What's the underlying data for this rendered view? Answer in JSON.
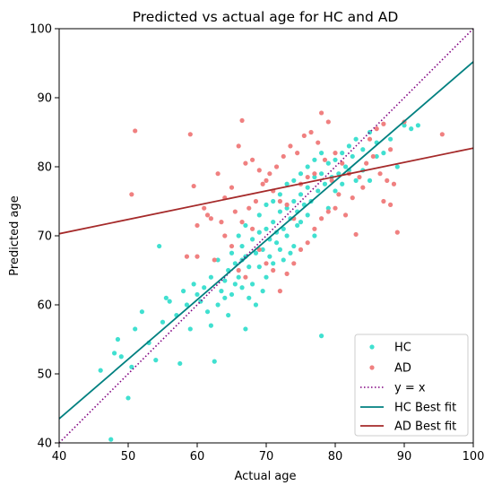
{
  "chart_data": {
    "type": "scatter",
    "title": "Predicted vs actual age for HC and AD",
    "xlabel": "Actual age",
    "ylabel": "Predicted age",
    "xlim": [
      40,
      100
    ],
    "ylim": [
      40,
      100
    ],
    "xticks": [
      40,
      50,
      60,
      70,
      80,
      90,
      100
    ],
    "yticks": [
      40,
      50,
      60,
      70,
      80,
      90,
      100
    ],
    "grid": false,
    "legend_position": "bottom-right",
    "colors": {
      "hc": "#40E0D0",
      "ad": "#F08080",
      "identity": "#800080",
      "hc_fit": "#008080",
      "ad_fit": "#A52A2A"
    },
    "series": [
      {
        "name": "HC",
        "kind": "scatter",
        "points": [
          [
            46.0,
            50.5
          ],
          [
            47.5,
            40.5
          ],
          [
            48.0,
            53.0
          ],
          [
            48.5,
            55.0
          ],
          [
            49.0,
            52.5
          ],
          [
            50.0,
            46.5
          ],
          [
            50.5,
            51.0
          ],
          [
            51.0,
            56.5
          ],
          [
            52.0,
            59.0
          ],
          [
            53.0,
            54.5
          ],
          [
            54.0,
            52.0
          ],
          [
            55.0,
            57.5
          ],
          [
            55.5,
            61.0
          ],
          [
            56.0,
            60.5
          ],
          [
            57.0,
            58.5
          ],
          [
            58.0,
            62.0
          ],
          [
            58.5,
            60.0
          ],
          [
            59.0,
            56.5
          ],
          [
            59.5,
            63.0
          ],
          [
            60.0,
            61.5
          ],
          [
            60.5,
            60.5
          ],
          [
            61.0,
            62.5
          ],
          [
            61.5,
            59.0
          ],
          [
            62.0,
            64.0
          ],
          [
            62.5,
            51.8
          ],
          [
            63.0,
            66.5
          ],
          [
            63.5,
            62.0
          ],
          [
            64.0,
            63.5
          ],
          [
            64.5,
            65.0
          ],
          [
            65.0,
            67.5
          ],
          [
            65.5,
            66.0
          ],
          [
            66.0,
            64.0
          ],
          [
            66.5,
            68.5
          ],
          [
            67.0,
            67.0
          ],
          [
            67.5,
            65.5
          ],
          [
            68.0,
            69.5
          ],
          [
            68.5,
            67.5
          ],
          [
            69.0,
            70.5
          ],
          [
            69.5,
            68.0
          ],
          [
            70.0,
            71.0
          ],
          [
            70.5,
            69.5
          ],
          [
            71.0,
            72.0
          ],
          [
            71.5,
            70.5
          ],
          [
            72.0,
            73.5
          ],
          [
            72.5,
            71.0
          ],
          [
            73.0,
            74.0
          ],
          [
            73.5,
            72.5
          ],
          [
            74.0,
            75.0
          ],
          [
            74.5,
            73.5
          ],
          [
            75.0,
            76.0
          ],
          [
            75.5,
            74.5
          ],
          [
            76.0,
            77.0
          ],
          [
            76.5,
            75.0
          ],
          [
            77.0,
            78.5
          ],
          [
            77.5,
            76.5
          ],
          [
            78.0,
            79.0
          ],
          [
            78.5,
            77.5
          ],
          [
            79.0,
            80.5
          ],
          [
            79.5,
            78.5
          ],
          [
            80.0,
            81.0
          ],
          [
            80.5,
            79.0
          ],
          [
            81.0,
            82.0
          ],
          [
            81.5,
            80.0
          ],
          [
            82.0,
            83.0
          ],
          [
            82.5,
            81.5
          ],
          [
            83.0,
            84.0
          ],
          [
            84.0,
            82.5
          ],
          [
            85.0,
            85.0
          ],
          [
            86.0,
            83.5
          ],
          [
            87.0,
            82.0
          ],
          [
            88.0,
            84.0
          ],
          [
            89.0,
            80.0
          ],
          [
            90.0,
            86.0
          ],
          [
            91.0,
            85.5
          ],
          [
            92.0,
            86.0
          ],
          [
            54.5,
            68.5
          ],
          [
            57.5,
            51.5
          ],
          [
            62.0,
            57.0
          ],
          [
            64.5,
            58.5
          ],
          [
            66.0,
            70.0
          ],
          [
            67.0,
            56.5
          ],
          [
            68.0,
            63.0
          ],
          [
            69.0,
            65.5
          ],
          [
            70.0,
            64.0
          ],
          [
            71.0,
            66.0
          ],
          [
            72.0,
            68.0
          ],
          [
            73.0,
            70.0
          ],
          [
            74.0,
            68.5
          ],
          [
            75.0,
            72.0
          ],
          [
            76.0,
            73.0
          ],
          [
            77.0,
            70.0
          ],
          [
            78.0,
            55.5
          ],
          [
            79.0,
            74.0
          ],
          [
            80.0,
            76.5
          ],
          [
            81.0,
            77.5
          ],
          [
            82.0,
            79.5
          ],
          [
            83.0,
            78.0
          ],
          [
            84.0,
            79.5
          ],
          [
            85.0,
            78.0
          ],
          [
            86.0,
            81.5
          ],
          [
            65.0,
            61.5
          ],
          [
            66.5,
            62.5
          ],
          [
            67.5,
            61.0
          ],
          [
            68.5,
            60.0
          ],
          [
            69.5,
            62.0
          ],
          [
            70.5,
            67.0
          ],
          [
            71.5,
            69.0
          ],
          [
            72.5,
            66.5
          ],
          [
            73.5,
            67.5
          ],
          [
            74.5,
            71.5
          ],
          [
            63.0,
            60.0
          ],
          [
            64.0,
            61.0
          ],
          [
            65.5,
            63.0
          ],
          [
            66.5,
            66.5
          ],
          [
            67.0,
            71.5
          ],
          [
            69.0,
            73.0
          ],
          [
            70.0,
            74.5
          ],
          [
            71.0,
            75.0
          ],
          [
            72.0,
            76.0
          ],
          [
            73.0,
            77.5
          ],
          [
            74.0,
            78.0
          ],
          [
            75.0,
            79.0
          ],
          [
            76.0,
            80.0
          ],
          [
            77.0,
            81.0
          ],
          [
            78.0,
            82.0
          ]
        ]
      },
      {
        "name": "AD",
        "kind": "scatter",
        "points": [
          [
            50.5,
            76.0
          ],
          [
            51.0,
            85.2
          ],
          [
            59.0,
            84.7
          ],
          [
            59.5,
            77.2
          ],
          [
            60.0,
            71.5
          ],
          [
            61.0,
            74.0
          ],
          [
            62.0,
            72.5
          ],
          [
            63.0,
            79.0
          ],
          [
            64.0,
            75.5
          ],
          [
            65.0,
            77.0
          ],
          [
            66.0,
            83.0
          ],
          [
            66.5,
            86.7
          ],
          [
            67.0,
            80.5
          ],
          [
            68.0,
            81.0
          ],
          [
            69.0,
            79.5
          ],
          [
            70.0,
            78.0
          ],
          [
            71.0,
            76.5
          ],
          [
            72.0,
            75.0
          ],
          [
            73.0,
            74.5
          ],
          [
            74.0,
            72.5
          ],
          [
            75.0,
            77.5
          ],
          [
            76.0,
            78.5
          ],
          [
            77.0,
            79.0
          ],
          [
            78.0,
            87.8
          ],
          [
            79.0,
            86.5
          ],
          [
            80.0,
            82.0
          ],
          [
            81.0,
            80.5
          ],
          [
            82.0,
            79.0
          ],
          [
            83.0,
            70.2
          ],
          [
            84.0,
            77.0
          ],
          [
            85.0,
            84.0
          ],
          [
            86.0,
            85.5
          ],
          [
            87.0,
            86.2
          ],
          [
            88.0,
            82.5
          ],
          [
            89.0,
            70.5
          ],
          [
            90.0,
            86.5
          ],
          [
            95.5,
            84.7
          ],
          [
            60.0,
            67.0
          ],
          [
            62.5,
            66.5
          ],
          [
            64.0,
            70.0
          ],
          [
            65.0,
            68.5
          ],
          [
            66.5,
            72.0
          ],
          [
            67.5,
            74.0
          ],
          [
            68.5,
            75.0
          ],
          [
            69.5,
            77.5
          ],
          [
            70.5,
            79.0
          ],
          [
            71.5,
            80.0
          ],
          [
            72.5,
            81.5
          ],
          [
            73.5,
            83.0
          ],
          [
            74.5,
            82.0
          ],
          [
            75.5,
            84.5
          ],
          [
            76.5,
            85.0
          ],
          [
            77.5,
            83.5
          ],
          [
            78.5,
            81.0
          ],
          [
            79.5,
            78.0
          ],
          [
            80.5,
            76.0
          ],
          [
            81.5,
            73.0
          ],
          [
            82.5,
            75.5
          ],
          [
            83.5,
            78.5
          ],
          [
            84.5,
            80.5
          ],
          [
            85.5,
            81.5
          ],
          [
            86.5,
            79.0
          ],
          [
            87.5,
            78.0
          ],
          [
            88.5,
            77.5
          ],
          [
            70.0,
            66.0
          ],
          [
            71.0,
            65.0
          ],
          [
            72.0,
            62.0
          ],
          [
            73.0,
            64.5
          ],
          [
            74.0,
            66.0
          ],
          [
            75.0,
            68.0
          ],
          [
            76.0,
            69.0
          ],
          [
            77.0,
            71.0
          ],
          [
            78.0,
            72.5
          ],
          [
            79.0,
            73.5
          ],
          [
            80.0,
            74.0
          ],
          [
            68.0,
            71.0
          ],
          [
            69.0,
            68.0
          ],
          [
            66.0,
            65.0
          ],
          [
            67.0,
            64.0
          ],
          [
            65.5,
            73.5
          ],
          [
            63.5,
            72.0
          ],
          [
            61.5,
            73.0
          ],
          [
            58.5,
            67.0
          ],
          [
            87.0,
            75.0
          ],
          [
            88.0,
            74.5
          ]
        ]
      },
      {
        "name": "y = x",
        "kind": "line",
        "x": [
          40,
          100
        ],
        "y": [
          40,
          100
        ]
      },
      {
        "name": "HC Best fit",
        "kind": "line",
        "x": [
          40,
          100
        ],
        "y": [
          43.5,
          95.2
        ]
      },
      {
        "name": "AD Best fit",
        "kind": "line",
        "x": [
          40,
          100
        ],
        "y": [
          70.3,
          82.7
        ]
      }
    ]
  }
}
